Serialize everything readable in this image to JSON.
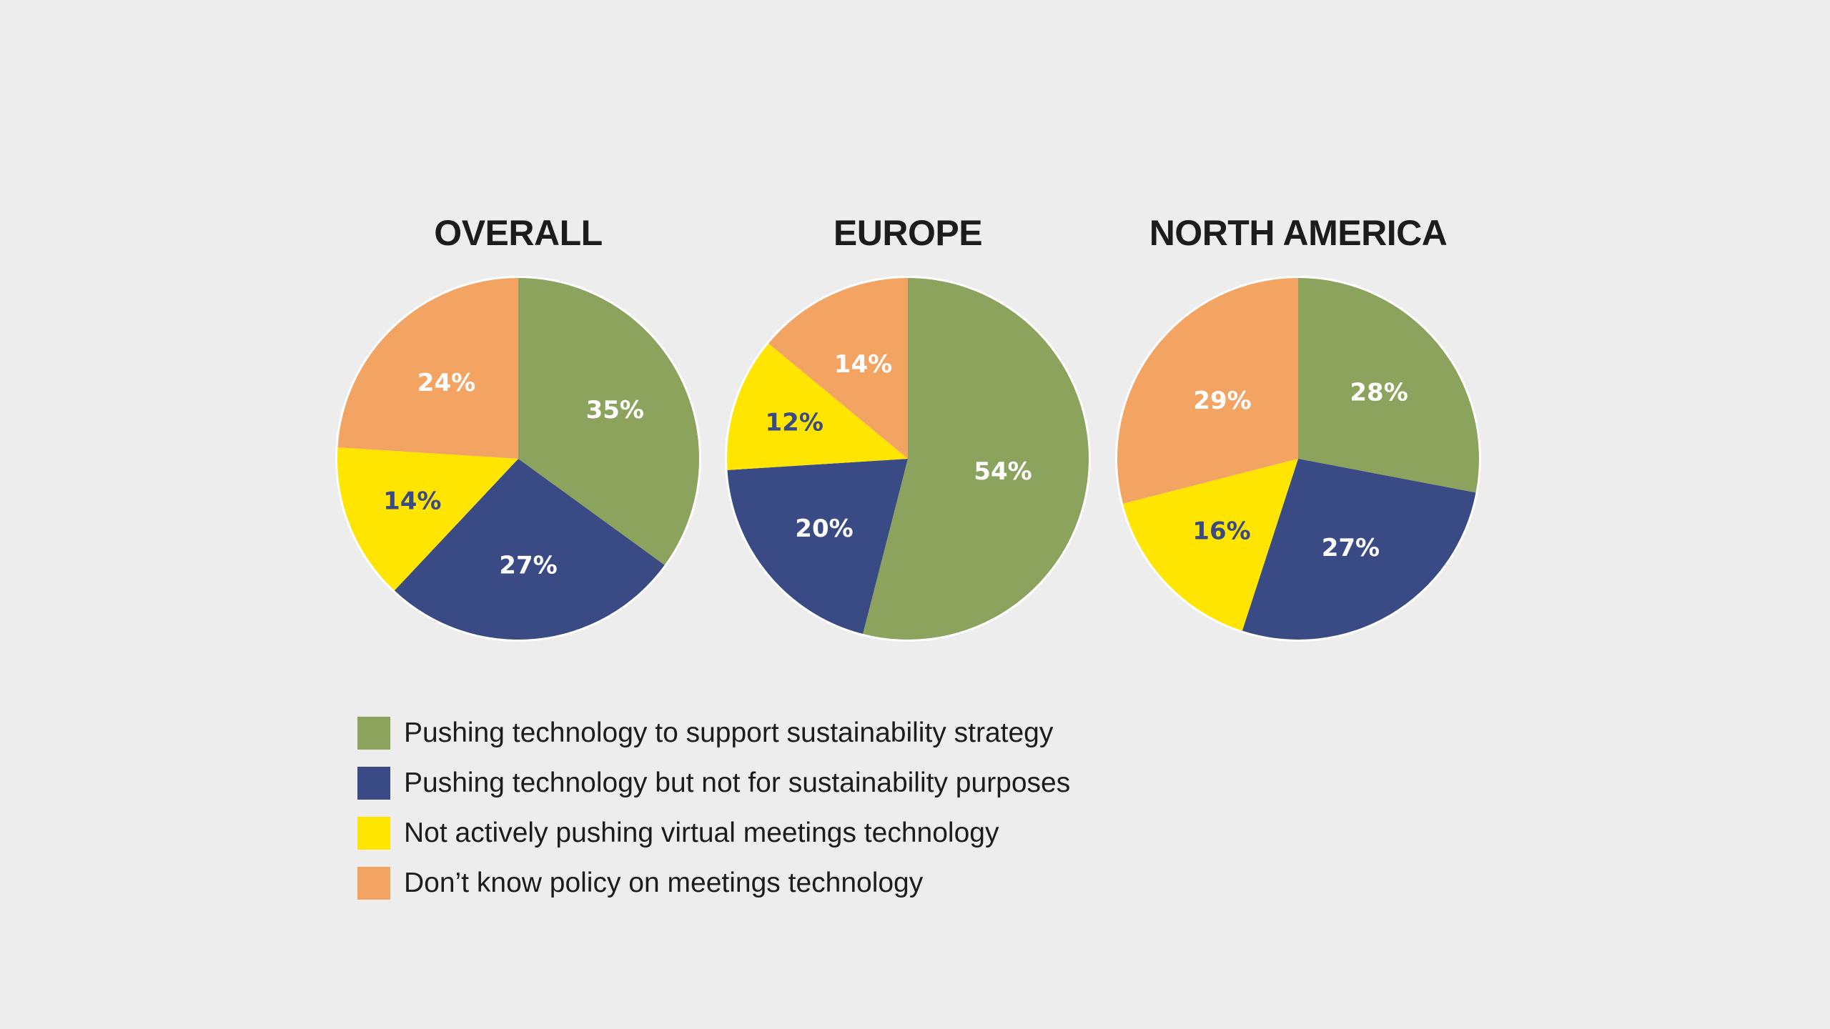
{
  "colors": {
    "background": "#ededed",
    "green": "#8ba35c",
    "navy": "#3a4a84",
    "yellow": "#ffe500",
    "orange": "#f4a462",
    "label_light": "#ffffff",
    "label_dark": "#3a4a84",
    "title": "#1c1c1c"
  },
  "legend": [
    {
      "key": "support",
      "label": "Pushing technology to support sustainability strategy",
      "color": "#8ba35c"
    },
    {
      "key": "not_sustain",
      "label": "Pushing technology but not for sustainability purposes",
      "color": "#3a4a84"
    },
    {
      "key": "not_pushing",
      "label": "Not actively pushing virtual meetings technology",
      "color": "#ffe500"
    },
    {
      "key": "dont_know",
      "label": "Don’t know policy on meetings technology",
      "color": "#f4a462"
    }
  ],
  "chart_data": [
    {
      "type": "pie",
      "title": "OVERALL",
      "categories": [
        "Pushing technology to support sustainability strategy",
        "Pushing technology but not for sustainability purposes",
        "Not actively pushing virtual meetings technology",
        "Don’t know policy on meetings technology"
      ],
      "values": [
        35,
        27,
        14,
        24
      ],
      "labels": [
        "35%",
        "27%",
        "14%",
        "24%"
      ],
      "start": "top",
      "direction": "clockwise"
    },
    {
      "type": "pie",
      "title": "EUROPE",
      "categories": [
        "Pushing technology to support sustainability strategy",
        "Pushing technology but not for sustainability purposes",
        "Not actively pushing virtual meetings technology",
        "Don’t know policy on meetings technology"
      ],
      "values": [
        54,
        20,
        12,
        14
      ],
      "labels": [
        "54%",
        "20%",
        "12%",
        "14%"
      ],
      "start": "top",
      "direction": "clockwise"
    },
    {
      "type": "pie",
      "title": "NORTH AMERICA",
      "categories": [
        "Pushing technology to support sustainability strategy",
        "Pushing technology but not for sustainability purposes",
        "Not actively pushing virtual meetings technology",
        "Don’t know policy on meetings technology"
      ],
      "values": [
        28,
        27,
        16,
        29
      ],
      "labels": [
        "28%",
        "27%",
        "16%",
        "29%"
      ],
      "start": "top",
      "direction": "clockwise"
    }
  ]
}
